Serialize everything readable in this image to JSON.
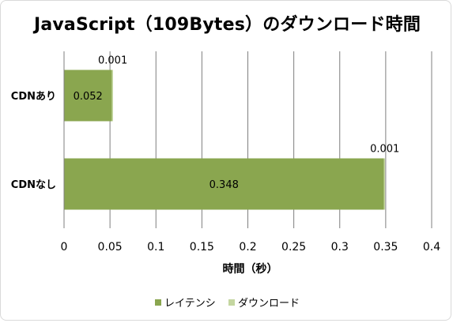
{
  "chart_data": {
    "type": "bar",
    "orientation": "horizontal",
    "stacked": true,
    "title": "JavaScript（109Bytes）のダウンロード時間",
    "xlabel": "時間（秒）",
    "ylabel": "",
    "xlim": [
      0,
      0.4
    ],
    "x_ticks": [
      "0",
      "0.05",
      "0.1",
      "0.15",
      "0.2",
      "0.25",
      "0.3",
      "0.35",
      "0.4"
    ],
    "categories": [
      "CDNあり",
      "CDNなし"
    ],
    "series": [
      {
        "name": "レイテンシ",
        "values": [
          0.052,
          0.348
        ],
        "labels": [
          "0.052",
          "0.348"
        ],
        "color": "#8aa64f"
      },
      {
        "name": "ダウンロード",
        "values": [
          0.001,
          0.001
        ],
        "labels": [
          "0.001",
          "0.001"
        ],
        "color": "#c4d6a0"
      }
    ],
    "grid": true,
    "legend_position": "bottom"
  }
}
